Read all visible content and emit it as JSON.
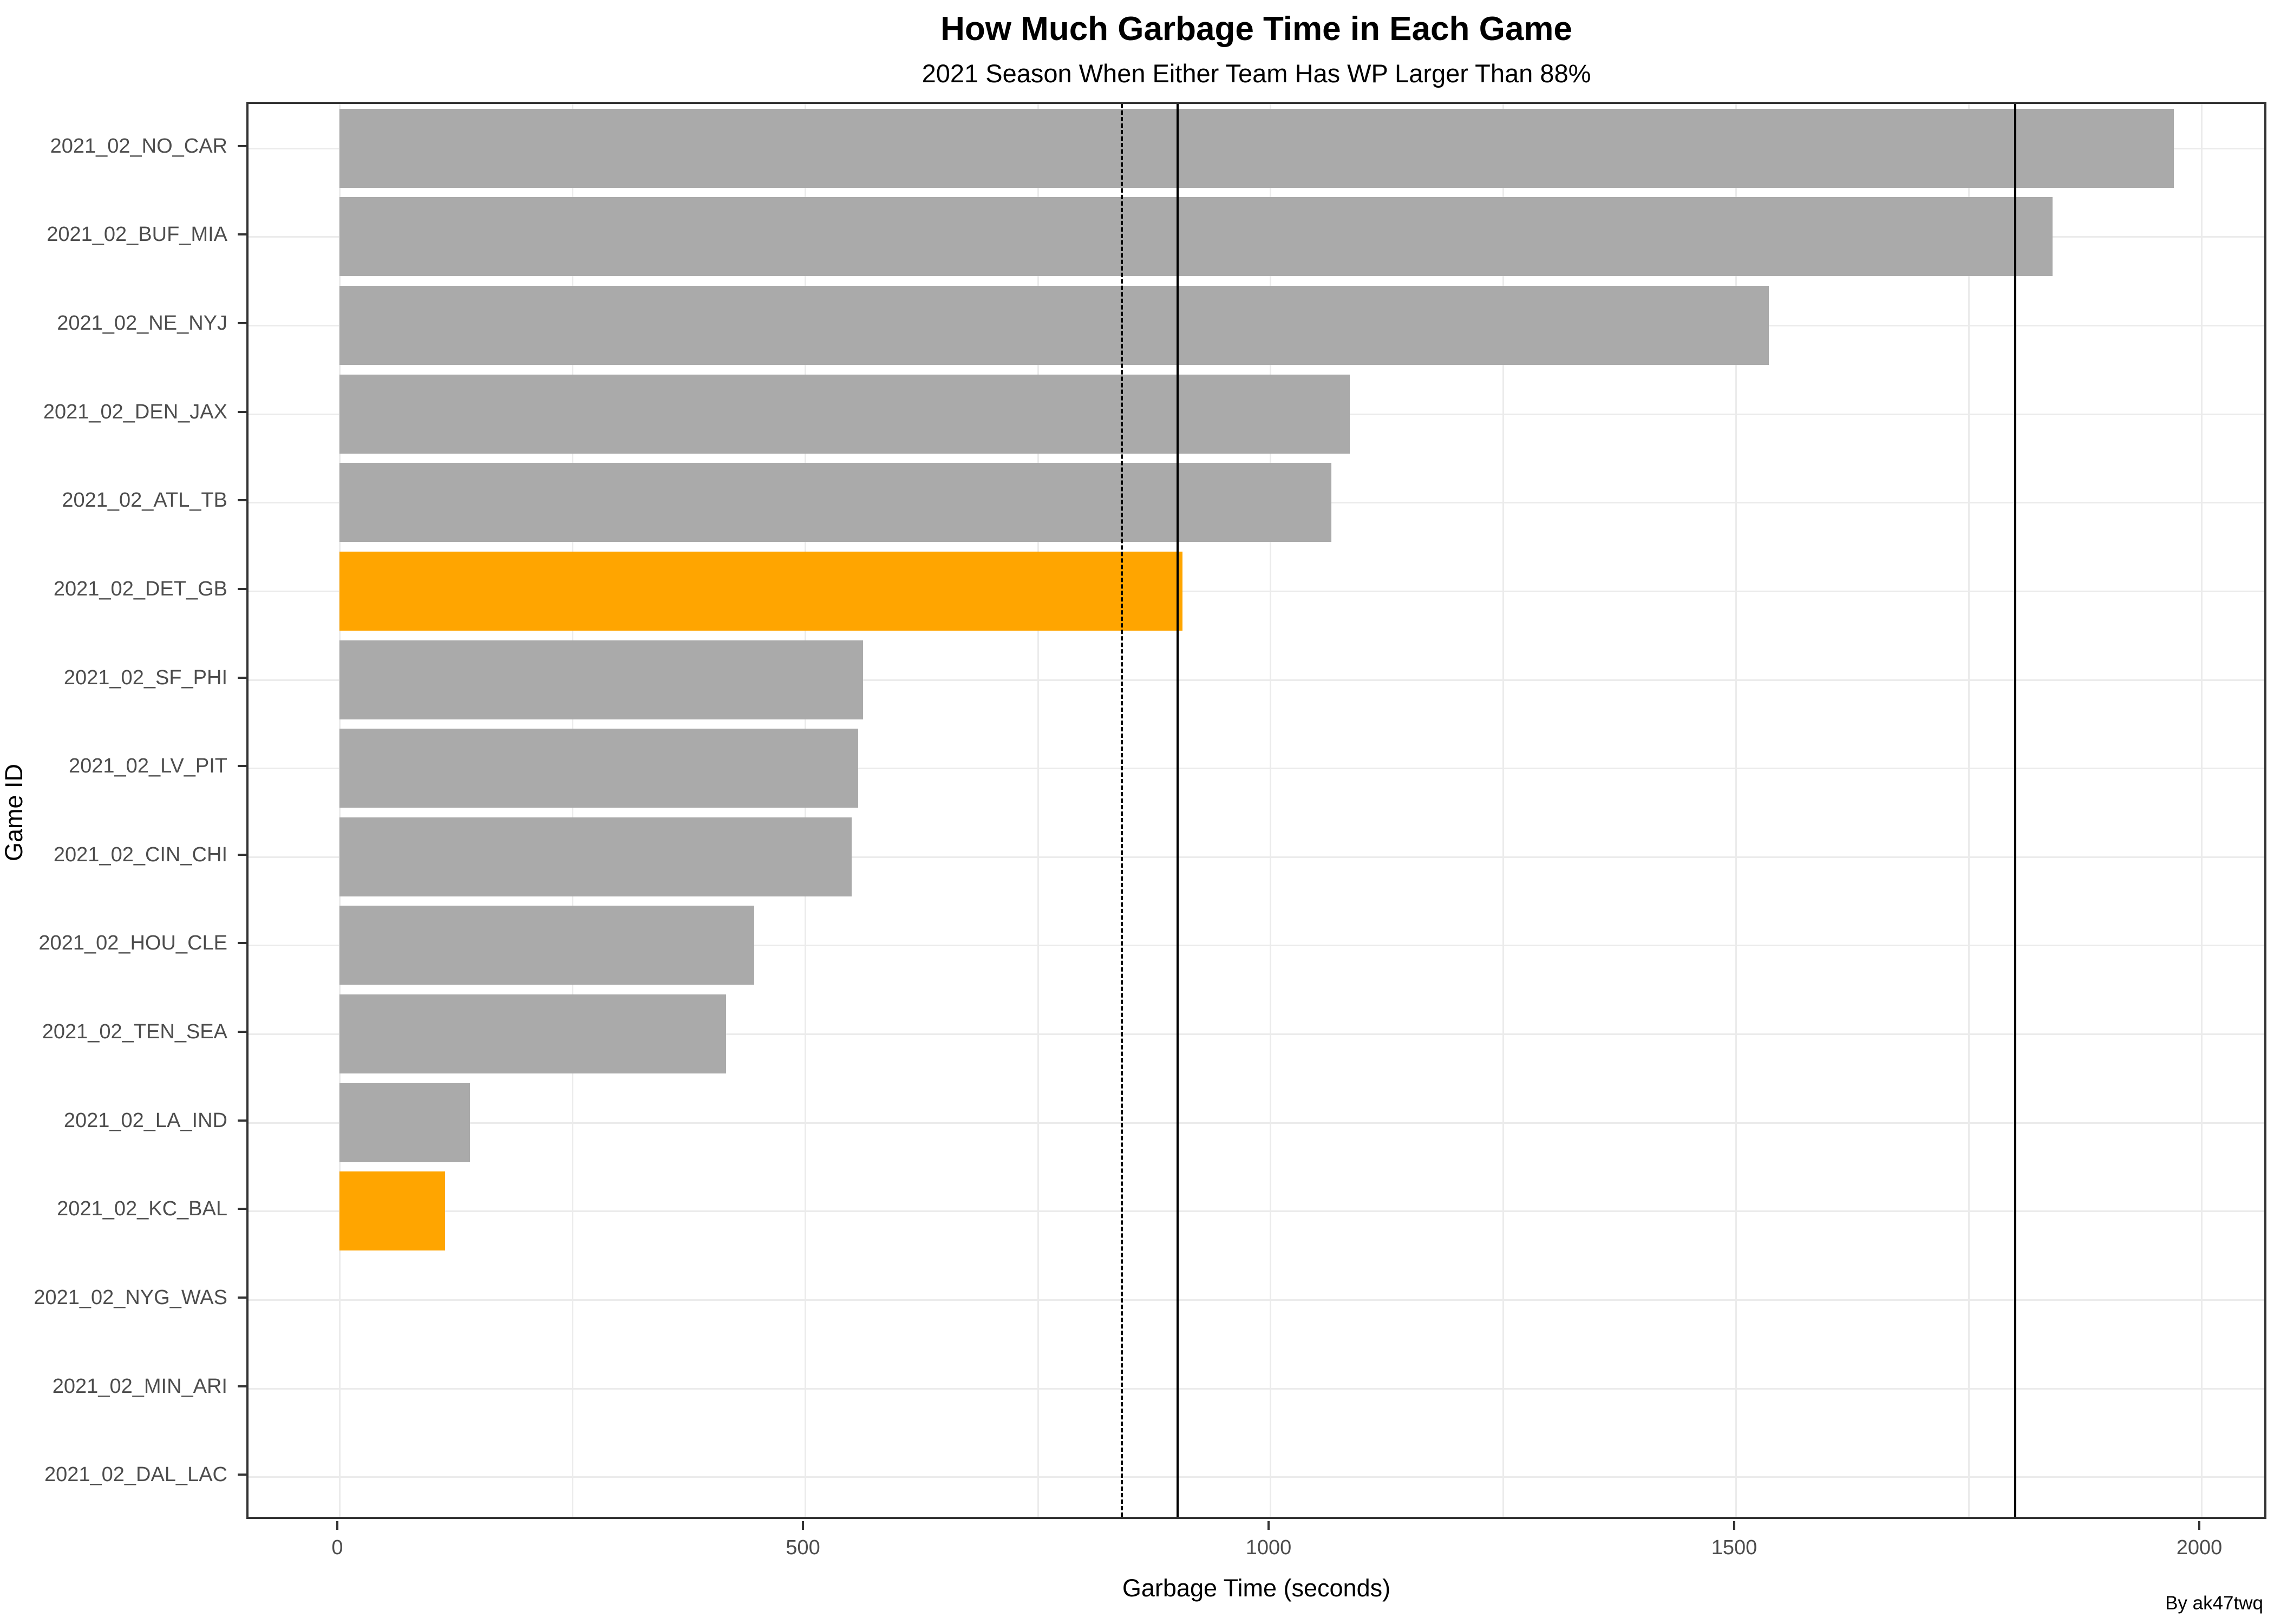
{
  "header": {
    "title": "How Much Garbage Time in Each Game",
    "subtitle": "2021 Season When Either Team Has WP Larger Than 88%"
  },
  "caption": "By ak47twq",
  "chart_data": {
    "type": "bar",
    "orientation": "horizontal",
    "title": "How Much Garbage Time in Each Game",
    "subtitle": "2021 Season When Either Team Has WP Larger Than 88%",
    "xlabel": "Garbage Time (seconds)",
    "ylabel": "Game ID",
    "categories": [
      "2021_02_NO_CAR",
      "2021_02_BUF_MIA",
      "2021_02_NE_NYJ",
      "2021_02_DEN_JAX",
      "2021_02_ATL_TB",
      "2021_02_DET_GB",
      "2021_02_SF_PHI",
      "2021_02_LV_PIT",
      "2021_02_CIN_CHI",
      "2021_02_HOU_CLE",
      "2021_02_TEN_SEA",
      "2021_02_LA_IND",
      "2021_02_KC_BAL",
      "2021_02_NYG_WAS",
      "2021_02_MIN_ARI",
      "2021_02_DAL_LAC"
    ],
    "values": [
      1970,
      1840,
      1535,
      1085,
      1065,
      905,
      562,
      557,
      550,
      445,
      415,
      140,
      113,
      0,
      0,
      0
    ],
    "highlighted_categories": [
      "2021_02_DET_GB",
      "2021_02_KC_BAL"
    ],
    "colors": {
      "default_bar": "#AAAAAA",
      "highlight_bar": "#FFA500",
      "gridline": "#EBEBEB",
      "refline": "#000000",
      "tick_text": "#4D4D4D"
    },
    "x_ticks": [
      0,
      500,
      1000,
      1500,
      2000
    ],
    "x_minor_ticks": [
      250,
      750,
      1250,
      1750
    ],
    "xlim": [
      -98,
      2072
    ],
    "grid": true,
    "legend": false,
    "reference_lines": [
      {
        "x": 840,
        "style": "dashed"
      },
      {
        "x": 900,
        "style": "solid"
      },
      {
        "x": 1800,
        "style": "solid"
      }
    ]
  }
}
